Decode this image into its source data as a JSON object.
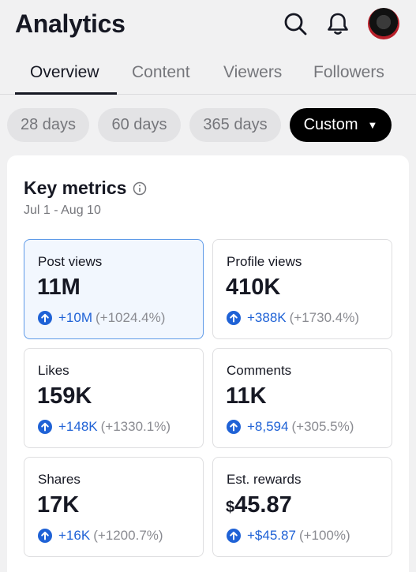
{
  "header": {
    "title": "Analytics"
  },
  "tabs": [
    {
      "label": "Overview"
    },
    {
      "label": "Content"
    },
    {
      "label": "Viewers"
    },
    {
      "label": "Followers"
    }
  ],
  "date_chips": [
    {
      "label": "28 days"
    },
    {
      "label": "60 days"
    },
    {
      "label": "365 days"
    },
    {
      "label": "Custom"
    }
  ],
  "key_metrics": {
    "title": "Key metrics",
    "date_range": "Jul 1 - Aug 10",
    "metrics": [
      {
        "label": "Post views",
        "value": "11M",
        "currency": "",
        "delta": "+10M",
        "percent": "(+1024.4%)"
      },
      {
        "label": "Profile views",
        "value": "410K",
        "currency": "",
        "delta": "+388K",
        "percent": "(+1730.4%)"
      },
      {
        "label": "Likes",
        "value": "159K",
        "currency": "",
        "delta": "+148K",
        "percent": "(+1330.1%)"
      },
      {
        "label": "Comments",
        "value": "11K",
        "currency": "",
        "delta": "+8,594",
        "percent": "(+305.5%)"
      },
      {
        "label": "Shares",
        "value": "17K",
        "currency": "",
        "delta": "+16K",
        "percent": "(+1200.7%)"
      },
      {
        "label": "Est. rewards",
        "value": "45.87",
        "currency": "$",
        "delta": "+$45.87",
        "percent": "(+100%)"
      }
    ]
  },
  "colors": {
    "accent_blue": "#1f62d6",
    "selected_border": "#5e9ae8",
    "text": "#161823",
    "muted": "#75767b"
  }
}
